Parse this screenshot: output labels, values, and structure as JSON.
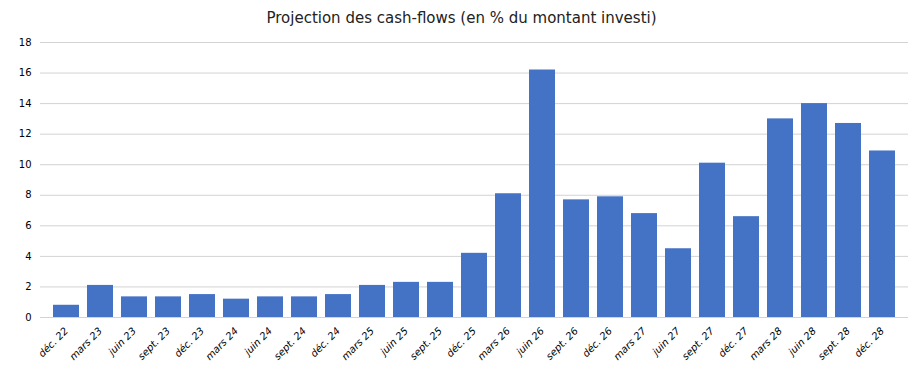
{
  "chart_data": {
    "type": "bar",
    "title": "Projection des cash-flows (en % du montant investi)",
    "categories": [
      "déc. 22",
      "mars 23",
      "juin 23",
      "sept. 23",
      "déc. 23",
      "mars 24",
      "juin 24",
      "sept. 24",
      "déc. 24",
      "mars 25",
      "juin 25",
      "sept. 25",
      "déc. 25",
      "mars 26",
      "juin 26",
      "sept. 26",
      "déc. 26",
      "mars 27",
      "juin 27",
      "sept. 27",
      "déc. 27",
      "mars 28",
      "juin 28",
      "sept. 28",
      "déc. 28"
    ],
    "values": [
      0.8,
      2.1,
      1.35,
      1.35,
      1.5,
      1.2,
      1.35,
      1.35,
      1.5,
      2.1,
      2.3,
      2.3,
      4.2,
      8.1,
      16.2,
      7.7,
      7.9,
      6.8,
      4.5,
      10.1,
      6.6,
      13.0,
      14.0,
      12.7,
      10.9
    ],
    "color": "#4472c4",
    "ylim": [
      0,
      18
    ],
    "yticks": [
      0,
      2,
      4,
      6,
      8,
      10,
      12,
      14,
      16,
      18
    ],
    "grid": true
  }
}
